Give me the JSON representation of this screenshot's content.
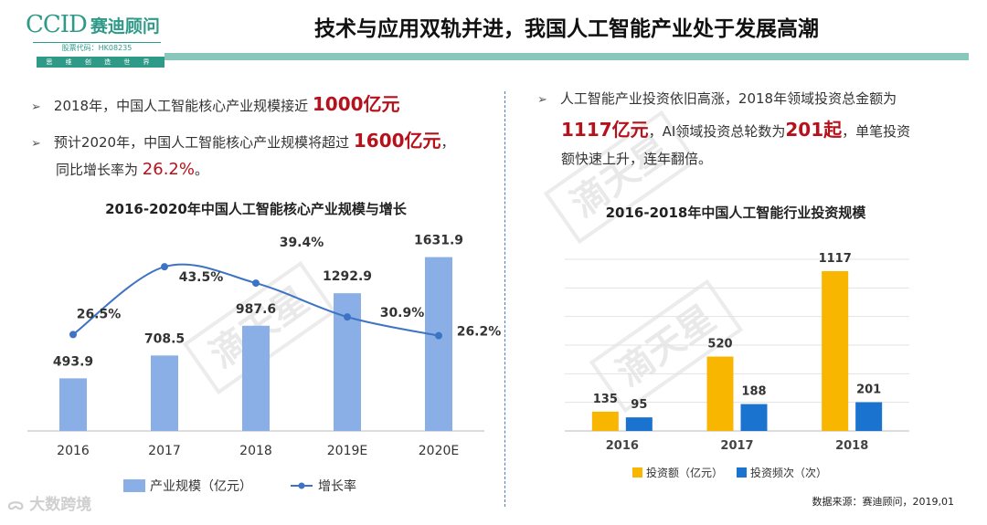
{
  "logo": {
    "ccid": "CCID",
    "name": "赛迪顾问",
    "stock": "股票代码：HK08235",
    "slogan": "思 维 创 造 世 界"
  },
  "page_title": "技术与应用双轨并进，我国人工智能产业处于发展高潮",
  "left_bullets": {
    "b1_text": "2018年，中国人工智能核心产业规模接近",
    "b1_value": "1000亿元",
    "b2_text": "预计2020年，中国人工智能核心产业规模将超过",
    "b2_value": "1600亿元",
    "b2_tail": "，",
    "b3_text": "同比增长率为",
    "b3_value": "26.2%",
    "b3_tail": "。"
  },
  "right_bullets": {
    "line1": "人工智能产业投资依旧高涨，2018年领域投资总金额为",
    "value1": "1117亿元",
    "mid": "，AI领域投资总轮数为",
    "value2": "201起",
    "tail": "，单笔投资",
    "line3": "额快速上升，连年翻倍。"
  },
  "watermark": {
    "stamp": "滴天星",
    "corner": "大数跨境"
  },
  "source": "数据来源：赛迪顾问，2019,01",
  "colors": {
    "blue_bar": "#8aaee6",
    "line": "#3d73c4",
    "gold": "#f9b600",
    "blue2": "#1a73cf",
    "red": "#b5121b"
  },
  "chart_data": [
    {
      "type": "bar",
      "title": "2016-2020年中国人工智能核心产业规模与增长",
      "categories": [
        "2016",
        "2017",
        "2018",
        "2019E",
        "2020E"
      ],
      "series": [
        {
          "name": "产业规模（亿元）",
          "type": "bar",
          "values": [
            493.9,
            708.5,
            987.6,
            1292.9,
            1631.9
          ],
          "labels": [
            "493.9",
            "708.5",
            "987.6",
            "1292.9",
            "1631.9"
          ]
        },
        {
          "name": "增长率",
          "type": "line",
          "values": [
            26.5,
            43.5,
            39.4,
            30.9,
            26.2
          ],
          "labels": [
            "26.5%",
            "43.5%",
            "39.4%",
            "30.9%",
            "26.2%"
          ]
        }
      ],
      "ylim": [
        0,
        1800
      ],
      "y2lim": [
        0,
        55
      ],
      "legend": "bottom"
    },
    {
      "type": "bar",
      "title": "2016-2018年中国人工智能行业投资规模",
      "categories": [
        "2016",
        "2017",
        "2018"
      ],
      "series": [
        {
          "name": "投资额（亿元）",
          "values": [
            135,
            520,
            1117
          ],
          "labels": [
            "135",
            "520",
            "1117"
          ]
        },
        {
          "name": "投资频次（次）",
          "values": [
            95,
            188,
            201
          ],
          "labels": [
            "95",
            "188",
            "201"
          ]
        }
      ],
      "ylim": [
        0,
        1200
      ],
      "grid": true,
      "legend": "bottom"
    }
  ]
}
